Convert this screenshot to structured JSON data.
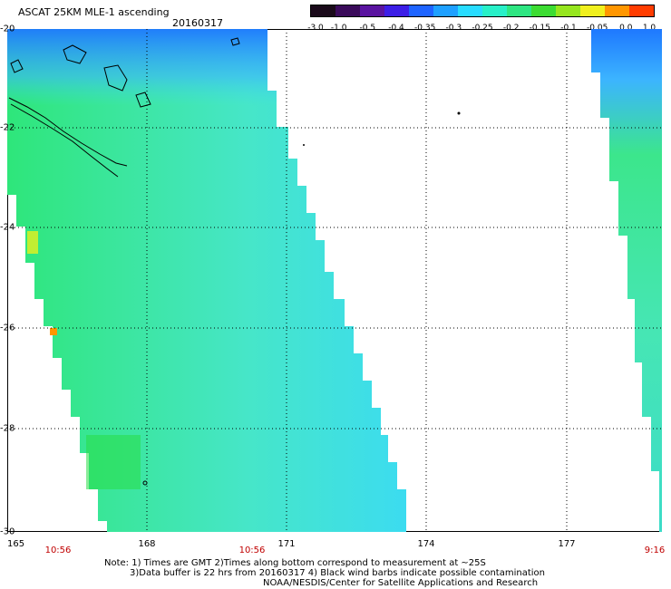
{
  "header": {
    "title": "ASCAT 25KM MLE-1 ascending",
    "date": "20160317"
  },
  "colorbar": {
    "labels": [
      "-3.0",
      "-1.0",
      "-0.5",
      "-0.4",
      "-0.35",
      "-0.3",
      "-0.25",
      "-0.2",
      "-0.15",
      "-0.1",
      "-0.05",
      "0.0",
      "1.0"
    ],
    "colors": [
      "#1a0a1a",
      "#3a0a5a",
      "#5a14a0",
      "#3c1ee6",
      "#1e64ff",
      "#1ea0ff",
      "#28dcff",
      "#28f0c8",
      "#2ee682",
      "#3cdc32",
      "#96e61e",
      "#f0f01e",
      "#ff9600",
      "#ff3c00"
    ]
  },
  "map": {
    "lat_labels": [
      "-20",
      "-22",
      "-24",
      "-26",
      "-28",
      "-30"
    ],
    "lon_labels": [
      "165",
      "168",
      "171",
      "174",
      "177"
    ],
    "time_labels": [
      "10:56",
      "10:56",
      "9:16"
    ],
    "swath_colors": {
      "blue": "#1e78ff",
      "blue_light": "#3cb4ff",
      "cyan": "#3cdcf0",
      "cyan_light": "#50f0e6",
      "green_cyan": "#46e6b4",
      "green": "#3ce68c",
      "green_bright": "#28dc46",
      "yellow": "#e6f01e"
    }
  },
  "notes": [
    "Note: 1) Times are GMT 2)Times along bottom correspond to measurement at ~25S",
    "3)Data buffer is 22 hrs from 20160317 4) Black wind barbs indicate possible contamination",
    "NOAA/NESDIS/Center for Satellite Applications and Research"
  ]
}
